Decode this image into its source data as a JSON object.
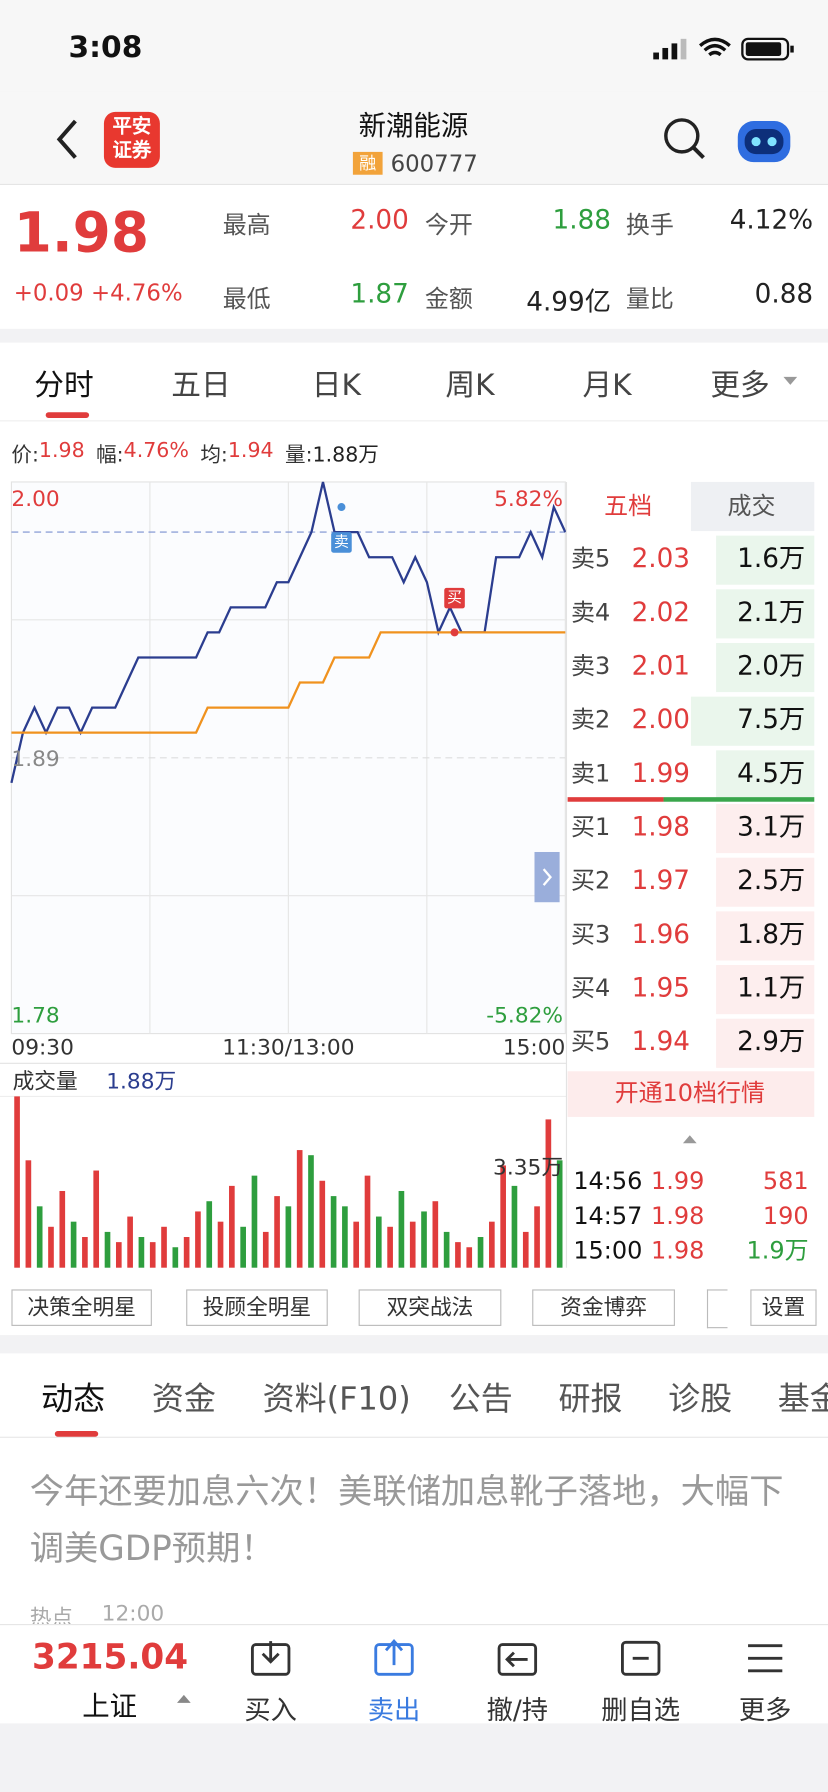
{
  "status_bar": {
    "time": "3:08"
  },
  "header": {
    "logo": "平安证券",
    "title": "新潮能源",
    "badge": "融",
    "code": "600777"
  },
  "quote": {
    "price": "1.98",
    "change": "+0.09 +4.76%",
    "fields": [
      {
        "label": "最高",
        "value": "2.00",
        "color": "#e03c3c"
      },
      {
        "label": "今开",
        "value": "1.88",
        "color": "#2e9e3e"
      },
      {
        "label": "换手",
        "value": "4.12%",
        "color": "#222222"
      },
      {
        "label": "最低",
        "value": "1.87",
        "color": "#2e9e3e"
      },
      {
        "label": "金额",
        "value": "4.99亿",
        "color": "#222222"
      },
      {
        "label": "量比",
        "value": "0.88",
        "color": "#222222"
      }
    ]
  },
  "tabs": {
    "items": [
      "分时",
      "五日",
      "日K",
      "周K",
      "月K",
      "更多"
    ],
    "active": 0
  },
  "info_line": [
    {
      "label": "价:",
      "value": "1.98",
      "color": "#e03c3c"
    },
    {
      "label": "幅:",
      "value": "4.76%",
      "color": "#e03c3c"
    },
    {
      "label": "均:",
      "value": "1.94",
      "color": "#e03c3c"
    },
    {
      "label": "量:",
      "value": "1.88万",
      "color": "#222222"
    }
  ],
  "chart_data": [
    {
      "type": "line",
      "base": 1.89,
      "current": 1.98,
      "x": [
        0,
        5,
        10,
        15,
        20,
        25,
        30,
        35,
        40,
        45,
        50,
        55,
        60,
        65,
        70,
        75,
        80,
        85,
        90,
        95,
        100,
        105,
        110,
        115,
        120,
        125,
        130,
        135,
        140,
        145,
        150,
        155,
        160,
        165,
        170,
        175,
        180,
        185,
        190,
        195,
        200,
        205,
        210,
        215,
        220,
        225,
        230,
        235,
        240
      ],
      "series": [
        {
          "name": "价",
          "color": "#2b3d8f",
          "values": [
            1.88,
            1.9,
            1.91,
            1.9,
            1.91,
            1.91,
            1.9,
            1.91,
            1.91,
            1.91,
            1.92,
            1.93,
            1.93,
            1.93,
            1.93,
            1.93,
            1.93,
            1.94,
            1.94,
            1.95,
            1.95,
            1.95,
            1.95,
            1.96,
            1.96,
            1.97,
            1.98,
            2.0,
            1.98,
            1.98,
            1.98,
            1.97,
            1.97,
            1.97,
            1.96,
            1.97,
            1.96,
            1.94,
            1.95,
            1.94,
            1.94,
            1.94,
            1.97,
            1.97,
            1.97,
            1.98,
            1.97,
            1.99,
            1.98
          ]
        },
        {
          "name": "均",
          "color": "#f0921e",
          "values": [
            1.9,
            1.9,
            1.9,
            1.9,
            1.9,
            1.9,
            1.9,
            1.9,
            1.9,
            1.9,
            1.9,
            1.9,
            1.9,
            1.9,
            1.9,
            1.9,
            1.9,
            1.91,
            1.91,
            1.91,
            1.91,
            1.91,
            1.91,
            1.91,
            1.91,
            1.92,
            1.92,
            1.92,
            1.93,
            1.93,
            1.93,
            1.93,
            1.94,
            1.94,
            1.94,
            1.94,
            1.94,
            1.94,
            1.94,
            1.94,
            1.94,
            1.94,
            1.94,
            1.94,
            1.94,
            1.94,
            1.94,
            1.94,
            1.94
          ]
        }
      ],
      "xlim": [
        0,
        240
      ],
      "xticks": [
        {
          "value": 0,
          "label": "09:30"
        },
        {
          "value": 120,
          "label": "11:30/13:00"
        },
        {
          "value": 240,
          "label": "15:00"
        }
      ],
      "xgrid": [
        60,
        120,
        180
      ],
      "ylim": [
        1.78,
        2.0
      ],
      "yticks": [
        {
          "value": 2.0,
          "label": "2.00"
        },
        {
          "value": 1.89,
          "label": "1.89"
        },
        {
          "value": 1.78,
          "label": "1.78"
        }
      ],
      "ygrid": [
        1.945,
        1.835
      ],
      "y2lim": [
        -5.82,
        5.82
      ],
      "y2ticks": [
        {
          "value": 5.82,
          "label": "5.82%"
        },
        {
          "value": -5.82,
          "label": "-5.82%"
        }
      ],
      "annotations": [
        {
          "text": "卖",
          "x": 143,
          "y": 1.99,
          "color": "#4a8fd8"
        },
        {
          "text": "买",
          "x": 192,
          "y": 1.94,
          "color": "#e03c3c"
        }
      ]
    },
    {
      "type": "bar",
      "title": "成交量",
      "subtitle": "1.88万",
      "values": [
        3.35,
        2.1,
        1.2,
        0.8,
        1.5,
        0.9,
        0.6,
        1.9,
        0.7,
        0.5,
        1.0,
        0.6,
        0.5,
        0.8,
        0.4,
        0.6,
        1.1,
        1.3,
        0.9,
        1.6,
        0.8,
        1.8,
        0.7,
        1.4,
        1.2,
        2.3,
        2.2,
        1.7,
        1.4,
        1.2,
        0.9,
        1.8,
        1.0,
        0.8,
        1.5,
        0.9,
        1.1,
        1.3,
        0.7,
        0.5,
        0.4,
        0.6,
        0.9,
        2.0,
        1.6,
        0.7,
        1.2,
        2.9,
        2.1
      ],
      "colors": [
        "#e03c3c",
        "#e03c3c",
        "#2e9e3e",
        "#e03c3c",
        "#e03c3c",
        "#2e9e3e",
        "#e03c3c",
        "#e03c3c",
        "#2e9e3e",
        "#e03c3c",
        "#e03c3c",
        "#2e9e3e",
        "#e03c3c",
        "#e03c3c",
        "#2e9e3e",
        "#e03c3c",
        "#e03c3c",
        "#2e9e3e",
        "#e03c3c",
        "#e03c3c",
        "#2e9e3e",
        "#2e9e3e",
        "#e03c3c",
        "#e03c3c",
        "#2e9e3e",
        "#e03c3c",
        "#2e9e3e",
        "#e03c3c",
        "#2e9e3e",
        "#2e9e3e",
        "#e03c3c",
        "#e03c3c",
        "#2e9e3e",
        "#e03c3c",
        "#2e9e3e",
        "#e03c3c",
        "#2e9e3e",
        "#e03c3c",
        "#2e9e3e",
        "#e03c3c",
        "#e03c3c",
        "#2e9e3e",
        "#e03c3c",
        "#e03c3c",
        "#2e9e3e",
        "#e03c3c",
        "#e03c3c",
        "#e03c3c",
        "#2e9e3e"
      ],
      "ylim": [
        0,
        3.35
      ],
      "yticks": [
        {
          "value": 3.35,
          "label": "3.35万"
        }
      ]
    }
  ],
  "order_book": {
    "tabs": [
      "五档",
      "成交"
    ],
    "rows": [
      {
        "label": "卖5",
        "price": "2.03",
        "volume": "1.6万"
      },
      {
        "label": "卖4",
        "price": "2.02",
        "volume": "2.1万"
      },
      {
        "label": "卖3",
        "price": "2.01",
        "volume": "2.0万"
      },
      {
        "label": "卖2",
        "price": "2.00",
        "volume": "7.5万"
      },
      {
        "label": "卖1",
        "price": "1.99",
        "volume": "4.5万"
      },
      {
        "label": "买1",
        "price": "1.98",
        "volume": "3.1万"
      },
      {
        "label": "买2",
        "price": "1.97",
        "volume": "2.5万"
      },
      {
        "label": "买3",
        "price": "1.96",
        "volume": "1.8万"
      },
      {
        "label": "买4",
        "price": "1.95",
        "volume": "1.1万"
      },
      {
        "label": "买5",
        "price": "1.94",
        "volume": "2.9万"
      }
    ],
    "button": "开通10档行情",
    "trades": [
      {
        "time": "14:56",
        "price": "1.99",
        "volume": "581",
        "color": "#e03c3c"
      },
      {
        "time": "14:57",
        "price": "1.98",
        "volume": "190",
        "color": "#e03c3c"
      },
      {
        "time": "15:00",
        "price": "1.98",
        "volume": "1.9万",
        "color": "#2e9e3e"
      }
    ]
  },
  "tools": [
    "决策全明星",
    "投顾全明星",
    "双突战法",
    "资金博弈",
    "设置"
  ],
  "news_tabs": {
    "items": [
      "动态",
      "资金",
      "资料(F10)",
      "公告",
      "研报",
      "诊股",
      "基金"
    ],
    "active": 0
  },
  "news": {
    "headline": "今年还要加息六次！美联储加息靴子落地，大幅下调美GDP预期！",
    "tag": "热点",
    "time": "12:00"
  },
  "bottom_bar": {
    "index_value": "3215.04",
    "index_name": "上证",
    "actions": [
      "买入",
      "卖出",
      "撤/持",
      "删自选",
      "更多"
    ],
    "highlight": 1
  }
}
